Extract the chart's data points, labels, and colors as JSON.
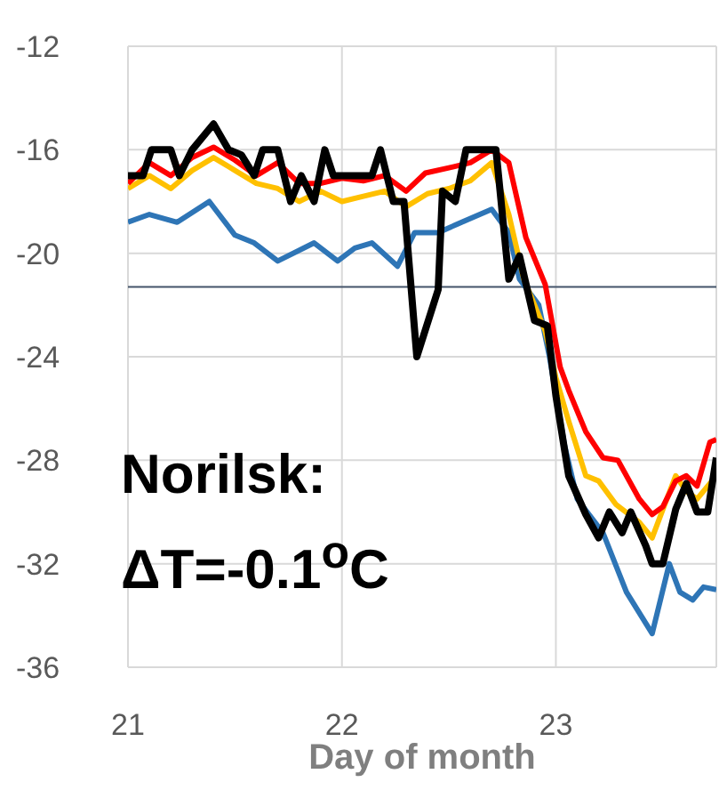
{
  "chart_data": {
    "type": "line",
    "xlabel": "Day of month",
    "annotations": [
      "Norilsk:",
      "ΔT=-0.1$^{o}$C"
    ],
    "xlim": [
      21,
      23.75
    ],
    "xticks": [
      21,
      22,
      23
    ],
    "ylim": [
      -36,
      -12
    ],
    "yticks": [
      -36,
      -32,
      -28,
      -24,
      -20,
      -16,
      -12
    ],
    "grid": true,
    "marker": "none",
    "line_style": "solid",
    "ref_lines": [
      {
        "axis": "y",
        "value": -21.3,
        "color": "#44546a"
      }
    ],
    "series": [
      {
        "color": "#2e75b6",
        "x": [
          21.0,
          21.1,
          21.23,
          21.38,
          21.5,
          21.59,
          21.7,
          21.87,
          21.98,
          22.06,
          22.14,
          22.26,
          22.34,
          22.45,
          22.56,
          22.7,
          22.78,
          22.83,
          22.92,
          22.97,
          23.04,
          23.1,
          23.22,
          23.33,
          23.45,
          23.53,
          23.58,
          23.64,
          23.69,
          23.75
        ],
        "values": [
          -18.8,
          -18.5,
          -18.8,
          -18,
          -19.3,
          -19.6,
          -20.3,
          -19.6,
          -20.3,
          -19.8,
          -19.6,
          -20.5,
          -19.2,
          -19.2,
          -18.8,
          -18.3,
          -19.2,
          -21,
          -22,
          -24,
          -27.4,
          -29.5,
          -30.8,
          -33.1,
          -34.7,
          -32,
          -33.1,
          -33.4,
          -32.9,
          -33
        ]
      },
      {
        "color": "#ffc000",
        "x": [
          21.0,
          21.1,
          21.2,
          21.3,
          21.4,
          21.5,
          21.6,
          21.7,
          21.8,
          21.9,
          22.0,
          22.1,
          22.2,
          22.3,
          22.4,
          22.5,
          22.6,
          22.7,
          22.78,
          22.85,
          22.95,
          23.0,
          23.06,
          23.14,
          23.2,
          23.28,
          23.39,
          23.45,
          23.5,
          23.56,
          23.61,
          23.66,
          23.75
        ],
        "values": [
          -17.5,
          -17,
          -17.5,
          -16.8,
          -16.3,
          -16.8,
          -17.3,
          -17.5,
          -18,
          -17.6,
          -18,
          -17.8,
          -17.6,
          -18.2,
          -17.7,
          -17.5,
          -17.2,
          -16.5,
          -18.5,
          -21,
          -23,
          -24.8,
          -26.5,
          -28.6,
          -28.8,
          -29.7,
          -30.4,
          -31,
          -29.9,
          -28.6,
          -29.2,
          -29.5,
          -28.6
        ]
      },
      {
        "color": "#ff0000",
        "x": [
          21.0,
          21.1,
          21.2,
          21.3,
          21.4,
          21.5,
          21.6,
          21.7,
          21.8,
          21.9,
          22.0,
          22.1,
          22.2,
          22.3,
          22.39,
          22.5,
          22.6,
          22.7,
          22.78,
          22.86,
          22.95,
          23.02,
          23.06,
          23.14,
          23.22,
          23.29,
          23.39,
          23.45,
          23.5,
          23.56,
          23.61,
          23.66,
          23.72,
          23.75
        ],
        "values": [
          -17.3,
          -16.5,
          -17,
          -16.3,
          -15.9,
          -16.4,
          -17,
          -16.5,
          -17.3,
          -17.3,
          -17.1,
          -17.2,
          -17,
          -17.6,
          -16.9,
          -16.7,
          -16.5,
          -16,
          -16.5,
          -19.4,
          -21.2,
          -24.4,
          -25.3,
          -26.9,
          -27.9,
          -28,
          -29.5,
          -30.1,
          -29.8,
          -28.8,
          -28.6,
          -29,
          -27.3,
          -27.2
        ]
      },
      {
        "color": "#000000",
        "x": [
          21.0,
          21.07,
          21.11,
          21.2,
          21.24,
          21.3,
          21.4,
          21.47,
          21.53,
          21.59,
          21.63,
          21.7,
          21.76,
          21.81,
          21.87,
          21.92,
          21.96,
          22.14,
          22.18,
          22.24,
          22.29,
          22.35,
          22.45,
          22.47,
          22.53,
          22.58,
          22.72,
          22.78,
          22.83,
          22.9,
          22.96,
          23.0,
          23.06,
          23.14,
          23.2,
          23.25,
          23.31,
          23.35,
          23.42,
          23.45,
          23.5,
          23.56,
          23.61,
          23.66,
          23.71,
          23.75
        ],
        "values": [
          -17,
          -17,
          -16,
          -16,
          -17,
          -16,
          -15,
          -16,
          -16.2,
          -17,
          -16,
          -16,
          -18,
          -17,
          -18,
          -16,
          -17,
          -17,
          -16,
          -18,
          -18,
          -24,
          -21.4,
          -17.6,
          -18,
          -16,
          -16,
          -21,
          -20.1,
          -22.6,
          -22.8,
          -25.5,
          -28.6,
          -30.1,
          -31,
          -30,
          -30.8,
          -30,
          -31.3,
          -32,
          -32,
          -29.9,
          -28.9,
          -30,
          -30,
          -27.9
        ]
      }
    ]
  }
}
